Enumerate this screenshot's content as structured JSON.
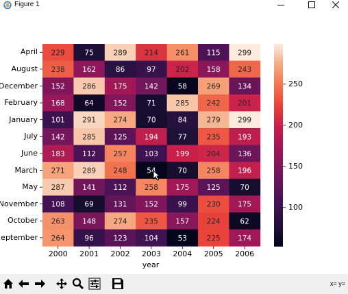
{
  "window": {
    "title": "Figure 1",
    "minimize": "—",
    "maximize": "□",
    "close": "✕"
  },
  "toolbar": {
    "buttons": [
      "home-icon",
      "back-icon",
      "forward-icon",
      "pan-icon",
      "zoom-icon",
      "configure-icon",
      "save-icon"
    ],
    "coords": "x= y="
  },
  "chart_data": {
    "type": "heatmap",
    "title": "",
    "xlabel": "year",
    "ylabel": "",
    "x": [
      "2000",
      "2001",
      "2002",
      "2003",
      "2004",
      "2005",
      "2006"
    ],
    "y": [
      "April",
      "August",
      "December",
      "February",
      "January",
      "July",
      "June",
      "March",
      "May",
      "November",
      "October",
      "September"
    ],
    "y_display": [
      "April",
      "August",
      "December",
      "February",
      "January",
      "July",
      "June",
      "March",
      "May",
      "November",
      "October",
      "eptember"
    ],
    "values": [
      [
        229,
        75,
        289,
        214,
        261,
        115,
        299
      ],
      [
        238,
        162,
        86,
        97,
        202,
        158,
        243
      ],
      [
        152,
        286,
        175,
        142,
        58,
        269,
        134
      ],
      [
        168,
        64,
        152,
        71,
        285,
        242,
        201
      ],
      [
        101,
        291,
        274,
        70,
        84,
        279,
        299
      ],
      [
        142,
        285,
        125,
        194,
        77,
        235,
        193
      ],
      [
        183,
        112,
        257,
        103,
        199,
        204,
        136
      ],
      [
        271,
        289,
        248,
        54,
        70,
        258,
        196
      ],
      [
        287,
        141,
        112,
        258,
        175,
        125,
        70
      ],
      [
        108,
        69,
        131,
        152,
        99,
        230,
        175
      ],
      [
        263,
        148,
        274,
        235,
        157,
        224,
        62
      ],
      [
        264,
        96,
        123,
        104,
        53,
        225,
        174
      ]
    ],
    "vmin": 53,
    "vmax": 299,
    "annotations": true,
    "colormap": "rocket",
    "colorbar_ticks": [
      100,
      150,
      200,
      250
    ]
  }
}
